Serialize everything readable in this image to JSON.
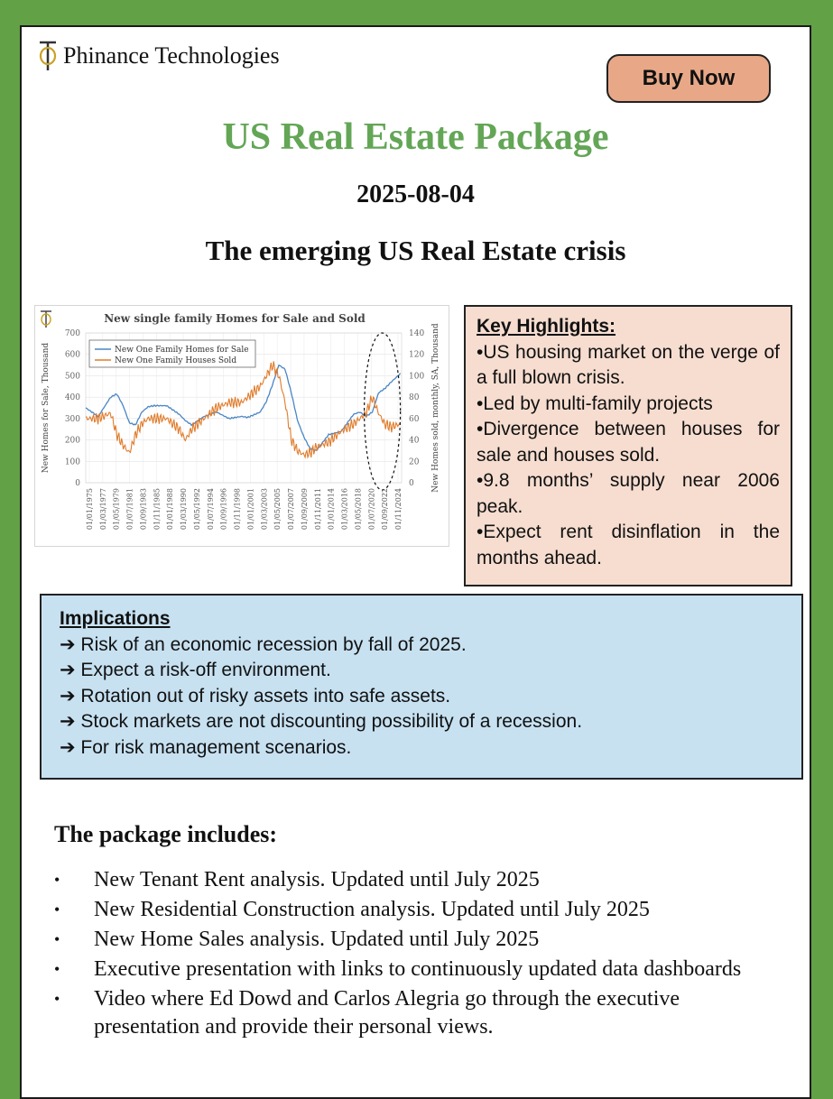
{
  "company": "Phinance Technologies",
  "buy_button": "Buy Now",
  "title": "US Real Estate Package",
  "date": "2025-08-04",
  "headline": "The emerging US Real Estate crisis",
  "key_highlights": {
    "title": "Key Highlights:",
    "items": [
      "•US housing market on the verge of a full blown crisis.",
      "•Led by multi-family projects",
      "•Divergence between houses for sale and houses sold.",
      "•9.8 months’ supply near 2006 peak.",
      "•Expect rent disinflation in the months ahead."
    ]
  },
  "implications": {
    "title": "Implications",
    "items": [
      "➔ Risk of an economic recession by fall of 2025.",
      "➔ Expect a risk-off environment.",
      "➔ Rotation out of risky assets into safe assets.",
      "➔ Stock markets are not discounting possibility of a recession.",
      "➔ For risk management scenarios."
    ]
  },
  "package": {
    "title": "The package includes:",
    "bullet": "•",
    "items": [
      "New Tenant Rent analysis. Updated until July 2025",
      "New Residential Construction analysis. Updated until July 2025",
      "New Home Sales analysis. Updated until July 2025",
      "Executive presentation with links to continuously updated data dashboards",
      "Video where Ed Dowd and Carlos Alegria go through the executive presentation and provide their personal views."
    ]
  },
  "colors": {
    "background_green": "#62a145",
    "title_green": "#63a656",
    "button": "#e8a888",
    "key_box": "#f6ddd0",
    "implications_box": "#c7e1f1",
    "series_for_sale": "#4a86c5",
    "series_sold": "#e07b2a"
  },
  "chart_data": {
    "type": "line",
    "title": "New single family Homes for Sale and Sold",
    "ylabel": "New Homes for Sale, Thousand",
    "y2label": "New Homes sold, monthly, SA, Thousand",
    "ylim": [
      0,
      700
    ],
    "y2lim": [
      0,
      140
    ],
    "yticks": [
      "0",
      "100",
      "200",
      "300",
      "400",
      "500",
      "600",
      "700"
    ],
    "y2ticks": [
      "0",
      "20",
      "40",
      "60",
      "80",
      "100",
      "120",
      "140"
    ],
    "xticks": [
      "01/01/1975",
      "01/03/1977",
      "01/05/1979",
      "01/07/1981",
      "01/09/1983",
      "01/11/1985",
      "01/01/1988",
      "01/03/1990",
      "01/05/1992",
      "01/07/1994",
      "01/09/1996",
      "01/11/1998",
      "01/01/2001",
      "01/03/2003",
      "01/05/2005",
      "01/07/2007",
      "01/09/2009",
      "01/11/2011",
      "01/01/2014",
      "01/03/2016",
      "01/05/2018",
      "01/07/2020",
      "01/09/2022",
      "01/11/2024"
    ],
    "grid": true,
    "legend_position": "top-left",
    "annotation": "dashed ellipse highlighting 2021-2025 divergence",
    "x": [
      1975,
      1977,
      1979,
      1980,
      1981,
      1982,
      1983,
      1984,
      1985,
      1986,
      1988,
      1990,
      1991,
      1992,
      1994,
      1996,
      1998,
      2000,
      2001,
      2003,
      2004,
      2005,
      2006,
      2007,
      2008,
      2009,
      2010,
      2011,
      2012,
      2014,
      2016,
      2018,
      2019,
      2020,
      2021,
      2022,
      2023,
      2024,
      2025.5
    ],
    "series": [
      {
        "name": "New One Family Homes for Sale",
        "axis": "left",
        "values": [
          350,
          310,
          400,
          415,
          360,
          280,
          270,
          330,
          355,
          360,
          360,
          320,
          290,
          270,
          310,
          330,
          300,
          310,
          305,
          330,
          380,
          460,
          550,
          530,
          420,
          290,
          215,
          160,
          150,
          225,
          240,
          320,
          330,
          310,
          330,
          420,
          440,
          470,
          510
        ]
      },
      {
        "name": "New One Family Houses Sold",
        "axis": "right",
        "values": [
          60,
          60,
          65,
          45,
          35,
          28,
          45,
          55,
          60,
          60,
          60,
          50,
          40,
          50,
          60,
          70,
          75,
          75,
          80,
          90,
          100,
          110,
          100,
          75,
          40,
          30,
          26,
          28,
          33,
          38,
          48,
          55,
          60,
          65,
          80,
          65,
          55,
          52,
          55
        ]
      }
    ]
  }
}
